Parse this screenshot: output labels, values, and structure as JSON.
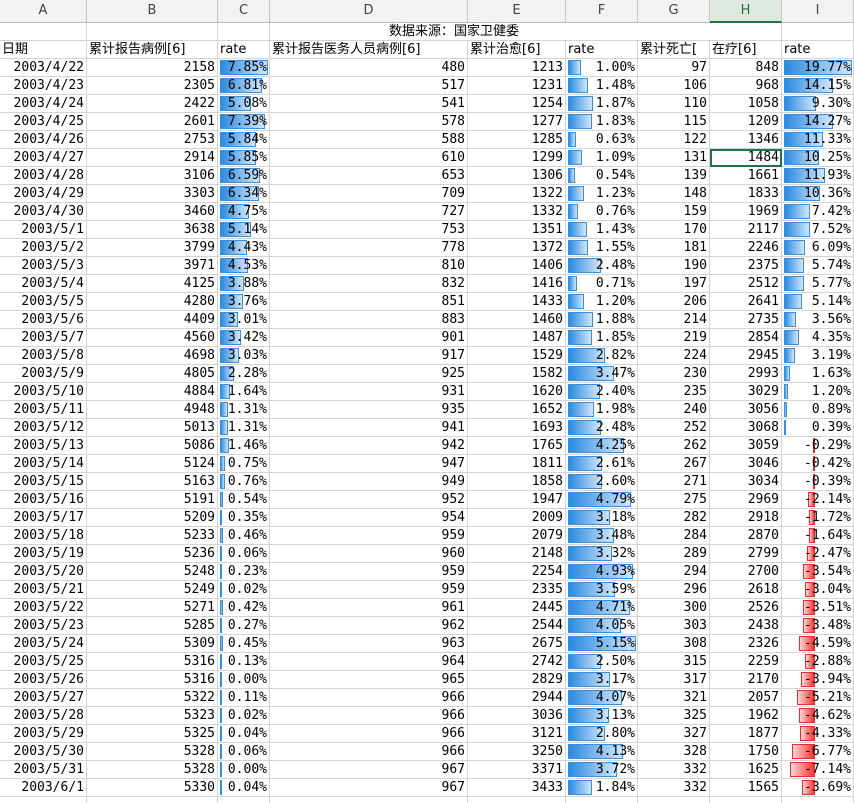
{
  "columns": [
    "A",
    "B",
    "C",
    "D",
    "E",
    "F",
    "G",
    "H",
    "I"
  ],
  "selected_column": "H",
  "title": "数据来源：国家卫健委",
  "headers": [
    "日期",
    "累计报告病例[6]",
    "rate",
    "累计报告医务人员病例[6]",
    "累计治愈[6]",
    "rate",
    "累计死亡[",
    "在疗[6]",
    "rate"
  ],
  "rows": [
    {
      "date": "2003/4/22",
      "cases": "2158",
      "c_rate": "7.85%",
      "c_pct": 7.85,
      "med": "480",
      "cured": "1213",
      "f_rate": "1.00%",
      "f_pct": 1.0,
      "dead": "97",
      "treat": "848",
      "i_rate": "19.77%",
      "i_pct": 19.77
    },
    {
      "date": "2003/4/23",
      "cases": "2305",
      "c_rate": "6.81%",
      "c_pct": 6.81,
      "med": "517",
      "cured": "1231",
      "f_rate": "1.48%",
      "f_pct": 1.48,
      "dead": "106",
      "treat": "968",
      "i_rate": "14.15%",
      "i_pct": 14.15
    },
    {
      "date": "2003/4/24",
      "cases": "2422",
      "c_rate": "5.08%",
      "c_pct": 5.08,
      "med": "541",
      "cured": "1254",
      "f_rate": "1.87%",
      "f_pct": 1.87,
      "dead": "110",
      "treat": "1058",
      "i_rate": "9.30%",
      "i_pct": 9.3
    },
    {
      "date": "2003/4/25",
      "cases": "2601",
      "c_rate": "7.39%",
      "c_pct": 7.39,
      "med": "578",
      "cured": "1277",
      "f_rate": "1.83%",
      "f_pct": 1.83,
      "dead": "115",
      "treat": "1209",
      "i_rate": "14.27%",
      "i_pct": 14.27
    },
    {
      "date": "2003/4/26",
      "cases": "2753",
      "c_rate": "5.84%",
      "c_pct": 5.84,
      "med": "588",
      "cured": "1285",
      "f_rate": "0.63%",
      "f_pct": 0.63,
      "dead": "122",
      "treat": "1346",
      "i_rate": "11.33%",
      "i_pct": 11.33
    },
    {
      "date": "2003/4/27",
      "cases": "2914",
      "c_rate": "5.85%",
      "c_pct": 5.85,
      "med": "610",
      "cured": "1299",
      "f_rate": "1.09%",
      "f_pct": 1.09,
      "dead": "131",
      "treat": "1484",
      "i_rate": "10.25%",
      "i_pct": 10.25
    },
    {
      "date": "2003/4/28",
      "cases": "3106",
      "c_rate": "6.59%",
      "c_pct": 6.59,
      "med": "653",
      "cured": "1306",
      "f_rate": "0.54%",
      "f_pct": 0.54,
      "dead": "139",
      "treat": "1661",
      "i_rate": "11.93%",
      "i_pct": 11.93
    },
    {
      "date": "2003/4/29",
      "cases": "3303",
      "c_rate": "6.34%",
      "c_pct": 6.34,
      "med": "709",
      "cured": "1322",
      "f_rate": "1.23%",
      "f_pct": 1.23,
      "dead": "148",
      "treat": "1833",
      "i_rate": "10.36%",
      "i_pct": 10.36
    },
    {
      "date": "2003/4/30",
      "cases": "3460",
      "c_rate": "4.75%",
      "c_pct": 4.75,
      "med": "727",
      "cured": "1332",
      "f_rate": "0.76%",
      "f_pct": 0.76,
      "dead": "159",
      "treat": "1969",
      "i_rate": "7.42%",
      "i_pct": 7.42
    },
    {
      "date": "2003/5/1",
      "cases": "3638",
      "c_rate": "5.14%",
      "c_pct": 5.14,
      "med": "753",
      "cured": "1351",
      "f_rate": "1.43%",
      "f_pct": 1.43,
      "dead": "170",
      "treat": "2117",
      "i_rate": "7.52%",
      "i_pct": 7.52
    },
    {
      "date": "2003/5/2",
      "cases": "3799",
      "c_rate": "4.43%",
      "c_pct": 4.43,
      "med": "778",
      "cured": "1372",
      "f_rate": "1.55%",
      "f_pct": 1.55,
      "dead": "181",
      "treat": "2246",
      "i_rate": "6.09%",
      "i_pct": 6.09
    },
    {
      "date": "2003/5/3",
      "cases": "3971",
      "c_rate": "4.53%",
      "c_pct": 4.53,
      "med": "810",
      "cured": "1406",
      "f_rate": "2.48%",
      "f_pct": 2.48,
      "dead": "190",
      "treat": "2375",
      "i_rate": "5.74%",
      "i_pct": 5.74
    },
    {
      "date": "2003/5/4",
      "cases": "4125",
      "c_rate": "3.88%",
      "c_pct": 3.88,
      "med": "832",
      "cured": "1416",
      "f_rate": "0.71%",
      "f_pct": 0.71,
      "dead": "197",
      "treat": "2512",
      "i_rate": "5.77%",
      "i_pct": 5.77
    },
    {
      "date": "2003/5/5",
      "cases": "4280",
      "c_rate": "3.76%",
      "c_pct": 3.76,
      "med": "851",
      "cured": "1433",
      "f_rate": "1.20%",
      "f_pct": 1.2,
      "dead": "206",
      "treat": "2641",
      "i_rate": "5.14%",
      "i_pct": 5.14
    },
    {
      "date": "2003/5/6",
      "cases": "4409",
      "c_rate": "3.01%",
      "c_pct": 3.01,
      "med": "883",
      "cured": "1460",
      "f_rate": "1.88%",
      "f_pct": 1.88,
      "dead": "214",
      "treat": "2735",
      "i_rate": "3.56%",
      "i_pct": 3.56
    },
    {
      "date": "2003/5/7",
      "cases": "4560",
      "c_rate": "3.42%",
      "c_pct": 3.42,
      "med": "901",
      "cured": "1487",
      "f_rate": "1.85%",
      "f_pct": 1.85,
      "dead": "219",
      "treat": "2854",
      "i_rate": "4.35%",
      "i_pct": 4.35
    },
    {
      "date": "2003/5/8",
      "cases": "4698",
      "c_rate": "3.03%",
      "c_pct": 3.03,
      "med": "917",
      "cured": "1529",
      "f_rate": "2.82%",
      "f_pct": 2.82,
      "dead": "224",
      "treat": "2945",
      "i_rate": "3.19%",
      "i_pct": 3.19
    },
    {
      "date": "2003/5/9",
      "cases": "4805",
      "c_rate": "2.28%",
      "c_pct": 2.28,
      "med": "925",
      "cured": "1582",
      "f_rate": "3.47%",
      "f_pct": 3.47,
      "dead": "230",
      "treat": "2993",
      "i_rate": "1.63%",
      "i_pct": 1.63
    },
    {
      "date": "2003/5/10",
      "cases": "4884",
      "c_rate": "1.64%",
      "c_pct": 1.64,
      "med": "931",
      "cured": "1620",
      "f_rate": "2.40%",
      "f_pct": 2.4,
      "dead": "235",
      "treat": "3029",
      "i_rate": "1.20%",
      "i_pct": 1.2
    },
    {
      "date": "2003/5/11",
      "cases": "4948",
      "c_rate": "1.31%",
      "c_pct": 1.31,
      "med": "935",
      "cured": "1652",
      "f_rate": "1.98%",
      "f_pct": 1.98,
      "dead": "240",
      "treat": "3056",
      "i_rate": "0.89%",
      "i_pct": 0.89
    },
    {
      "date": "2003/5/12",
      "cases": "5013",
      "c_rate": "1.31%",
      "c_pct": 1.31,
      "med": "941",
      "cured": "1693",
      "f_rate": "2.48%",
      "f_pct": 2.48,
      "dead": "252",
      "treat": "3068",
      "i_rate": "0.39%",
      "i_pct": 0.39
    },
    {
      "date": "2003/5/13",
      "cases": "5086",
      "c_rate": "1.46%",
      "c_pct": 1.46,
      "med": "942",
      "cured": "1765",
      "f_rate": "4.25%",
      "f_pct": 4.25,
      "dead": "262",
      "treat": "3059",
      "i_rate": "-0.29%",
      "i_pct": -0.29
    },
    {
      "date": "2003/5/14",
      "cases": "5124",
      "c_rate": "0.75%",
      "c_pct": 0.75,
      "med": "947",
      "cured": "1811",
      "f_rate": "2.61%",
      "f_pct": 2.61,
      "dead": "267",
      "treat": "3046",
      "i_rate": "-0.42%",
      "i_pct": -0.42
    },
    {
      "date": "2003/5/15",
      "cases": "5163",
      "c_rate": "0.76%",
      "c_pct": 0.76,
      "med": "949",
      "cured": "1858",
      "f_rate": "2.60%",
      "f_pct": 2.6,
      "dead": "271",
      "treat": "3034",
      "i_rate": "-0.39%",
      "i_pct": -0.39
    },
    {
      "date": "2003/5/16",
      "cases": "5191",
      "c_rate": "0.54%",
      "c_pct": 0.54,
      "med": "952",
      "cured": "1947",
      "f_rate": "4.79%",
      "f_pct": 4.79,
      "dead": "275",
      "treat": "2969",
      "i_rate": "-2.14%",
      "i_pct": -2.14
    },
    {
      "date": "2003/5/17",
      "cases": "5209",
      "c_rate": "0.35%",
      "c_pct": 0.35,
      "med": "954",
      "cured": "2009",
      "f_rate": "3.18%",
      "f_pct": 3.18,
      "dead": "282",
      "treat": "2918",
      "i_rate": "-1.72%",
      "i_pct": -1.72
    },
    {
      "date": "2003/5/18",
      "cases": "5233",
      "c_rate": "0.46%",
      "c_pct": 0.46,
      "med": "959",
      "cured": "2079",
      "f_rate": "3.48%",
      "f_pct": 3.48,
      "dead": "284",
      "treat": "2870",
      "i_rate": "-1.64%",
      "i_pct": -1.64
    },
    {
      "date": "2003/5/19",
      "cases": "5236",
      "c_rate": "0.06%",
      "c_pct": 0.06,
      "med": "960",
      "cured": "2148",
      "f_rate": "3.32%",
      "f_pct": 3.32,
      "dead": "289",
      "treat": "2799",
      "i_rate": "-2.47%",
      "i_pct": -2.47
    },
    {
      "date": "2003/5/20",
      "cases": "5248",
      "c_rate": "0.23%",
      "c_pct": 0.23,
      "med": "959",
      "cured": "2254",
      "f_rate": "4.93%",
      "f_pct": 4.93,
      "dead": "294",
      "treat": "2700",
      "i_rate": "-3.54%",
      "i_pct": -3.54
    },
    {
      "date": "2003/5/21",
      "cases": "5249",
      "c_rate": "0.02%",
      "c_pct": 0.02,
      "med": "959",
      "cured": "2335",
      "f_rate": "3.59%",
      "f_pct": 3.59,
      "dead": "296",
      "treat": "2618",
      "i_rate": "-3.04%",
      "i_pct": -3.04
    },
    {
      "date": "2003/5/22",
      "cases": "5271",
      "c_rate": "0.42%",
      "c_pct": 0.42,
      "med": "961",
      "cured": "2445",
      "f_rate": "4.71%",
      "f_pct": 4.71,
      "dead": "300",
      "treat": "2526",
      "i_rate": "-3.51%",
      "i_pct": -3.51
    },
    {
      "date": "2003/5/23",
      "cases": "5285",
      "c_rate": "0.27%",
      "c_pct": 0.27,
      "med": "962",
      "cured": "2544",
      "f_rate": "4.05%",
      "f_pct": 4.05,
      "dead": "303",
      "treat": "2438",
      "i_rate": "-3.48%",
      "i_pct": -3.48
    },
    {
      "date": "2003/5/24",
      "cases": "5309",
      "c_rate": "0.45%",
      "c_pct": 0.45,
      "med": "963",
      "cured": "2675",
      "f_rate": "5.15%",
      "f_pct": 5.15,
      "dead": "308",
      "treat": "2326",
      "i_rate": "-4.59%",
      "i_pct": -4.59
    },
    {
      "date": "2003/5/25",
      "cases": "5316",
      "c_rate": "0.13%",
      "c_pct": 0.13,
      "med": "964",
      "cured": "2742",
      "f_rate": "2.50%",
      "f_pct": 2.5,
      "dead": "315",
      "treat": "2259",
      "i_rate": "-2.88%",
      "i_pct": -2.88
    },
    {
      "date": "2003/5/26",
      "cases": "5316",
      "c_rate": "0.00%",
      "c_pct": 0.0,
      "med": "965",
      "cured": "2829",
      "f_rate": "3.17%",
      "f_pct": 3.17,
      "dead": "317",
      "treat": "2170",
      "i_rate": "-3.94%",
      "i_pct": -3.94
    },
    {
      "date": "2003/5/27",
      "cases": "5322",
      "c_rate": "0.11%",
      "c_pct": 0.11,
      "med": "966",
      "cured": "2944",
      "f_rate": "4.07%",
      "f_pct": 4.07,
      "dead": "321",
      "treat": "2057",
      "i_rate": "-5.21%",
      "i_pct": -5.21
    },
    {
      "date": "2003/5/28",
      "cases": "5323",
      "c_rate": "0.02%",
      "c_pct": 0.02,
      "med": "966",
      "cured": "3036",
      "f_rate": "3.13%",
      "f_pct": 3.13,
      "dead": "325",
      "treat": "1962",
      "i_rate": "-4.62%",
      "i_pct": -4.62
    },
    {
      "date": "2003/5/29",
      "cases": "5325",
      "c_rate": "0.04%",
      "c_pct": 0.04,
      "med": "966",
      "cured": "3121",
      "f_rate": "2.80%",
      "f_pct": 2.8,
      "dead": "327",
      "treat": "1877",
      "i_rate": "-4.33%",
      "i_pct": -4.33
    },
    {
      "date": "2003/5/30",
      "cases": "5328",
      "c_rate": "0.06%",
      "c_pct": 0.06,
      "med": "966",
      "cured": "3250",
      "f_rate": "4.13%",
      "f_pct": 4.13,
      "dead": "328",
      "treat": "1750",
      "i_rate": "-6.77%",
      "i_pct": -6.77
    },
    {
      "date": "2003/5/31",
      "cases": "5328",
      "c_rate": "0.00%",
      "c_pct": 0.0,
      "med": "967",
      "cured": "3371",
      "f_rate": "3.72%",
      "f_pct": 3.72,
      "dead": "332",
      "treat": "1625",
      "i_rate": "-7.14%",
      "i_pct": -7.14
    },
    {
      "date": "2003/6/1",
      "cases": "5330",
      "c_rate": "0.04%",
      "c_pct": 0.04,
      "med": "967",
      "cured": "3433",
      "f_rate": "1.84%",
      "f_pct": 1.84,
      "dead": "332",
      "treat": "1565",
      "i_rate": "-3.69%",
      "i_pct": -3.69
    }
  ],
  "active_cell": {
    "row": "2003/4/27",
    "column": "H"
  },
  "colors": {
    "bar_positive": "#2a8ae0",
    "bar_negative": "#ff3333",
    "selection": "#217346",
    "grid": "#d4d4d4",
    "header_bg": "#f2f2f2"
  }
}
